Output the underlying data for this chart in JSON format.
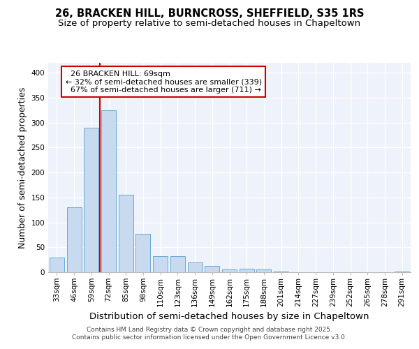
{
  "title1": "26, BRACKEN HILL, BURNCROSS, SHEFFIELD, S35 1RS",
  "title2": "Size of property relative to semi-detached houses in Chapeltown",
  "xlabel": "Distribution of semi-detached houses by size in Chapeltown",
  "ylabel": "Number of semi-detached properties",
  "categories": [
    "33sqm",
    "46sqm",
    "59sqm",
    "72sqm",
    "85sqm",
    "98sqm",
    "110sqm",
    "123sqm",
    "136sqm",
    "149sqm",
    "162sqm",
    "175sqm",
    "188sqm",
    "201sqm",
    "214sqm",
    "227sqm",
    "239sqm",
    "252sqm",
    "265sqm",
    "278sqm",
    "291sqm"
  ],
  "values": [
    30,
    130,
    290,
    325,
    155,
    77,
    32,
    32,
    20,
    13,
    5,
    7,
    5,
    1,
    0,
    0,
    0,
    0,
    0,
    0,
    2
  ],
  "bar_color": "#c8daf0",
  "bar_edge_color": "#6aaad4",
  "property_label": "26 BRACKEN HILL: 69sqm",
  "pct_smaller": 32,
  "n_smaller": 339,
  "pct_larger": 67,
  "n_larger": 711,
  "vline_x_index": 3.0,
  "vline_color": "#cc0000",
  "annotation_box_color": "#cc0000",
  "ylim": [
    0,
    420
  ],
  "yticks": [
    0,
    50,
    100,
    150,
    200,
    250,
    300,
    350,
    400
  ],
  "footer_text": "Contains HM Land Registry data © Crown copyright and database right 2025.\nContains public sector information licensed under the Open Government Licence v3.0.",
  "bg_color": "#eef2fa",
  "grid_color": "#ffffff",
  "title_fontsize": 10.5,
  "subtitle_fontsize": 9.5,
  "axis_label_fontsize": 9,
  "tick_fontsize": 7.5,
  "annotation_fontsize": 8,
  "footer_fontsize": 6.5
}
